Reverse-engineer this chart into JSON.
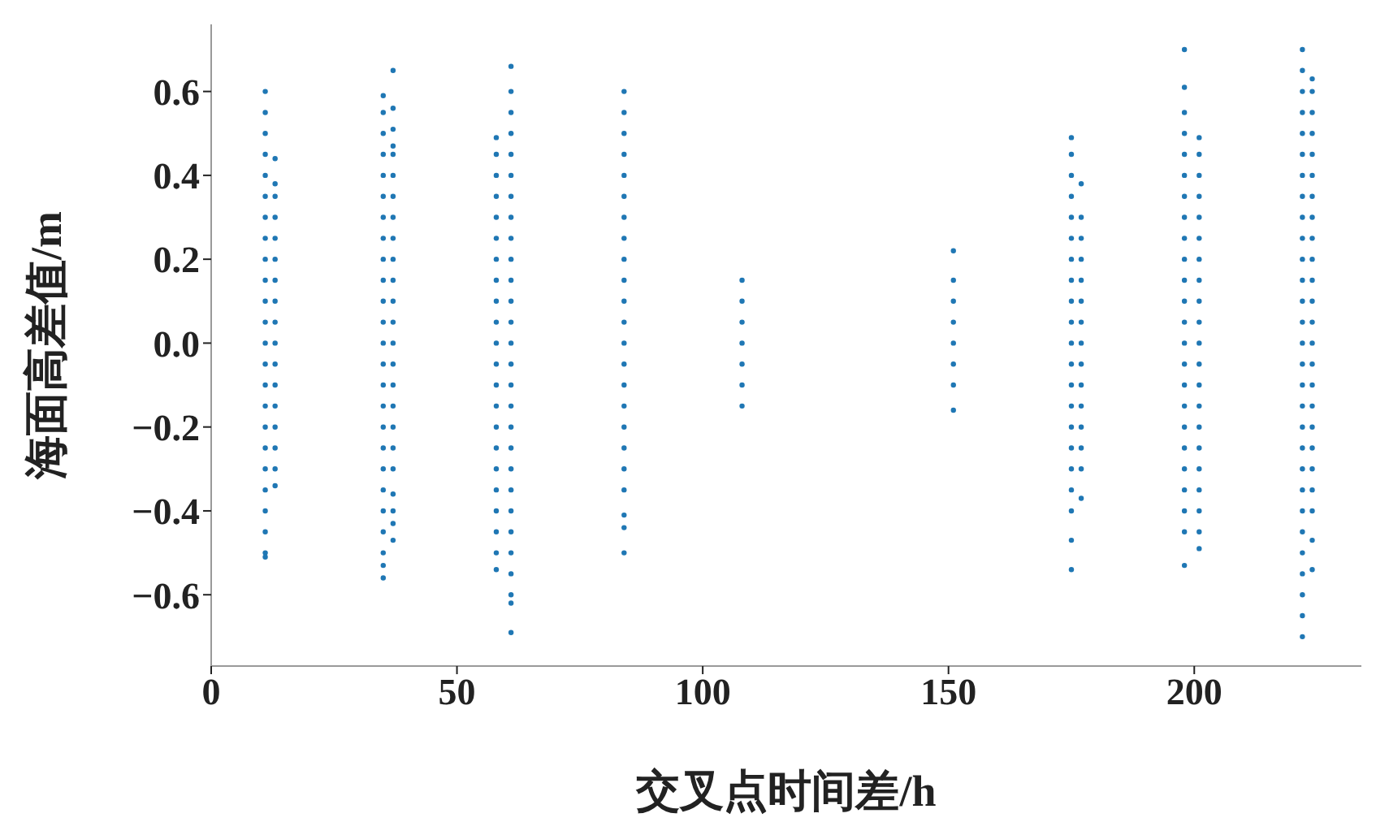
{
  "chart_data": {
    "type": "scatter",
    "xlabel": "交叉点时间差/h",
    "ylabel": "海面高差值/m",
    "marker": "circle",
    "xlim": [
      0,
      234
    ],
    "ylim": [
      -0.77,
      0.76
    ],
    "xticks": [
      0,
      50,
      100,
      150,
      200
    ],
    "yticks": [
      {
        "value": -0.6,
        "label": "−0.6"
      },
      {
        "value": -0.4,
        "label": "−0.4"
      },
      {
        "value": -0.2,
        "label": "−0.2"
      },
      {
        "value": 0,
        "label": "0.0"
      },
      {
        "value": 0.2,
        "label": "0.2"
      },
      {
        "value": 0.4,
        "label": "0.4"
      },
      {
        "value": 0.6,
        "label": "0.6"
      }
    ],
    "series": [
      {
        "color": "#1f77b4",
        "x": [
          11,
          11,
          11,
          11,
          11,
          11,
          11,
          11,
          11,
          11,
          11,
          11,
          11,
          11,
          11,
          11,
          11,
          11,
          11,
          11,
          11,
          11,
          11,
          11
        ],
        "values": [
          0.6,
          0.55,
          0.5,
          0.45,
          0.4,
          0.35,
          0.3,
          0.25,
          0.2,
          0.15,
          0.1,
          0.05,
          0,
          -0.05,
          -0.1,
          -0.15,
          -0.2,
          -0.25,
          -0.3,
          -0.35,
          -0.4,
          -0.45,
          -0.5,
          -0.51
        ]
      },
      {
        "color": "#1f77b4",
        "x": [
          13,
          13,
          13,
          13,
          13,
          13,
          13,
          13,
          13,
          13,
          13,
          13,
          13,
          13,
          13,
          13,
          13
        ],
        "values": [
          0.44,
          0.38,
          0.35,
          0.3,
          0.25,
          0.2,
          0.15,
          0.1,
          0.05,
          0,
          -0.05,
          -0.1,
          -0.15,
          -0.2,
          -0.25,
          -0.3,
          -0.34
        ]
      },
      {
        "color": "#1f77b4",
        "x": [
          35,
          35,
          35,
          35,
          35,
          35,
          35,
          35,
          35,
          35,
          35,
          35,
          35,
          35,
          35,
          35,
          35,
          35,
          35,
          35,
          35,
          35,
          35,
          35,
          35
        ],
        "values": [
          0.59,
          0.55,
          0.5,
          0.45,
          0.4,
          0.35,
          0.3,
          0.25,
          0.2,
          0.15,
          0.1,
          0.05,
          0,
          -0.05,
          -0.1,
          -0.15,
          -0.2,
          -0.25,
          -0.3,
          -0.35,
          -0.4,
          -0.45,
          -0.5,
          -0.53,
          -0.56
        ]
      },
      {
        "color": "#1f77b4",
        "x": [
          37,
          37,
          37,
          37,
          37,
          37,
          37,
          37,
          37,
          37,
          37,
          37,
          37,
          37,
          37,
          37,
          37,
          37,
          37,
          37,
          37,
          37,
          37,
          37
        ],
        "values": [
          0.65,
          0.56,
          0.51,
          0.47,
          0.45,
          0.4,
          0.35,
          0.3,
          0.25,
          0.2,
          0.15,
          0.1,
          0.05,
          0,
          -0.05,
          -0.1,
          -0.15,
          -0.2,
          -0.25,
          -0.3,
          -0.36,
          -0.4,
          -0.43,
          -0.47
        ]
      },
      {
        "color": "#1f77b4",
        "x": [
          58,
          58,
          58,
          58,
          58,
          58,
          58,
          58,
          58,
          58,
          58,
          58,
          58,
          58,
          58,
          58,
          58,
          58,
          58,
          58,
          58,
          58
        ],
        "values": [
          0.49,
          0.45,
          0.4,
          0.35,
          0.3,
          0.25,
          0.2,
          0.15,
          0.1,
          0.05,
          0,
          -0.05,
          -0.1,
          -0.15,
          -0.2,
          -0.25,
          -0.3,
          -0.35,
          -0.4,
          -0.45,
          -0.5,
          -0.54
        ]
      },
      {
        "color": "#1f77b4",
        "x": [
          61,
          61,
          61,
          61,
          61,
          61,
          61,
          61,
          61,
          61,
          61,
          61,
          61,
          61,
          61,
          61,
          61,
          61,
          61,
          61,
          61,
          61,
          61,
          61,
          61,
          61,
          61,
          61
        ],
        "values": [
          0.66,
          0.6,
          0.55,
          0.5,
          0.45,
          0.4,
          0.35,
          0.3,
          0.25,
          0.2,
          0.15,
          0.1,
          0.05,
          0,
          -0.05,
          -0.1,
          -0.15,
          -0.2,
          -0.25,
          -0.3,
          -0.35,
          -0.4,
          -0.45,
          -0.5,
          -0.55,
          -0.6,
          -0.62,
          -0.69
        ]
      },
      {
        "color": "#1f77b4",
        "x": [
          84,
          84,
          84,
          84,
          84,
          84,
          84,
          84,
          84,
          84,
          84,
          84,
          84,
          84,
          84,
          84,
          84,
          84,
          84,
          84,
          84,
          84,
          84
        ],
        "values": [
          0.6,
          0.55,
          0.5,
          0.45,
          0.4,
          0.35,
          0.3,
          0.25,
          0.2,
          0.15,
          0.1,
          0.05,
          0,
          -0.05,
          -0.1,
          -0.15,
          -0.2,
          -0.25,
          -0.3,
          -0.35,
          -0.41,
          -0.44,
          -0.5
        ]
      },
      {
        "color": "#1f77b4",
        "x": [
          108,
          108,
          108,
          108,
          108,
          108,
          108
        ],
        "values": [
          0.15,
          0.1,
          0.05,
          0,
          -0.05,
          -0.1,
          -0.15
        ]
      },
      {
        "color": "#1f77b4",
        "x": [
          151,
          151,
          151,
          151,
          151,
          151,
          151,
          151
        ],
        "values": [
          0.22,
          0.15,
          0.1,
          0.05,
          0,
          -0.05,
          -0.1,
          -0.16
        ]
      },
      {
        "color": "#1f77b4",
        "x": [
          175,
          175,
          175,
          175,
          175,
          175,
          175,
          175,
          175,
          175,
          175,
          175,
          175,
          175,
          175,
          175,
          175,
          175,
          175,
          175,
          175
        ],
        "values": [
          0.49,
          0.45,
          0.4,
          0.35,
          0.3,
          0.25,
          0.2,
          0.15,
          0.1,
          0.05,
          0,
          -0.05,
          -0.1,
          -0.15,
          -0.2,
          -0.25,
          -0.3,
          -0.35,
          -0.4,
          -0.47,
          -0.54
        ]
      },
      {
        "color": "#1f77b4",
        "x": [
          177,
          177,
          177,
          177,
          177,
          177,
          177,
          177,
          177,
          177,
          177,
          177,
          177,
          177,
          177
        ],
        "values": [
          0.38,
          0.3,
          0.25,
          0.2,
          0.15,
          0.1,
          0.05,
          0,
          -0.05,
          -0.1,
          -0.15,
          -0.2,
          -0.25,
          -0.3,
          -0.37
        ]
      },
      {
        "color": "#1f77b4",
        "x": [
          198,
          198,
          198,
          198,
          198,
          198,
          198,
          198,
          198,
          198,
          198,
          198,
          198,
          198,
          198,
          198,
          198,
          198,
          198,
          198,
          198,
          198,
          198,
          198
        ],
        "values": [
          0.7,
          0.61,
          0.55,
          0.5,
          0.45,
          0.4,
          0.35,
          0.3,
          0.25,
          0.2,
          0.15,
          0.1,
          0.05,
          0,
          -0.05,
          -0.1,
          -0.15,
          -0.2,
          -0.25,
          -0.3,
          -0.35,
          -0.4,
          -0.45,
          -0.53
        ]
      },
      {
        "color": "#1f77b4",
        "x": [
          201,
          201,
          201,
          201,
          201,
          201,
          201,
          201,
          201,
          201,
          201,
          201,
          201,
          201,
          201,
          201,
          201,
          201,
          201,
          201,
          201
        ],
        "values": [
          0.49,
          0.45,
          0.4,
          0.35,
          0.3,
          0.25,
          0.2,
          0.15,
          0.1,
          0.05,
          0,
          -0.05,
          -0.1,
          -0.15,
          -0.2,
          -0.25,
          -0.3,
          -0.35,
          -0.4,
          -0.45,
          -0.49
        ]
      },
      {
        "color": "#1f77b4",
        "x": [
          222,
          222,
          222,
          222,
          222,
          222,
          222,
          222,
          222,
          222,
          222,
          222,
          222,
          222,
          222,
          222,
          222,
          222,
          222,
          222,
          222,
          222,
          222,
          222,
          222,
          222,
          222,
          222,
          222
        ],
        "values": [
          0.7,
          0.65,
          0.6,
          0.55,
          0.5,
          0.45,
          0.4,
          0.35,
          0.3,
          0.25,
          0.2,
          0.15,
          0.1,
          0.05,
          0,
          -0.05,
          -0.1,
          -0.15,
          -0.2,
          -0.25,
          -0.3,
          -0.35,
          -0.4,
          -0.45,
          -0.5,
          -0.55,
          -0.6,
          -0.65,
          -0.7
        ]
      },
      {
        "color": "#1f77b4",
        "x": [
          224,
          224,
          224,
          224,
          224,
          224,
          224,
          224,
          224,
          224,
          224,
          224,
          224,
          224,
          224,
          224,
          224,
          224,
          224,
          224,
          224,
          224,
          224,
          224
        ],
        "values": [
          0.63,
          0.6,
          0.55,
          0.5,
          0.45,
          0.4,
          0.35,
          0.3,
          0.25,
          0.2,
          0.15,
          0.1,
          0.05,
          0,
          -0.05,
          -0.1,
          -0.15,
          -0.2,
          -0.25,
          -0.3,
          -0.35,
          -0.4,
          -0.47,
          -0.54
        ]
      }
    ]
  }
}
